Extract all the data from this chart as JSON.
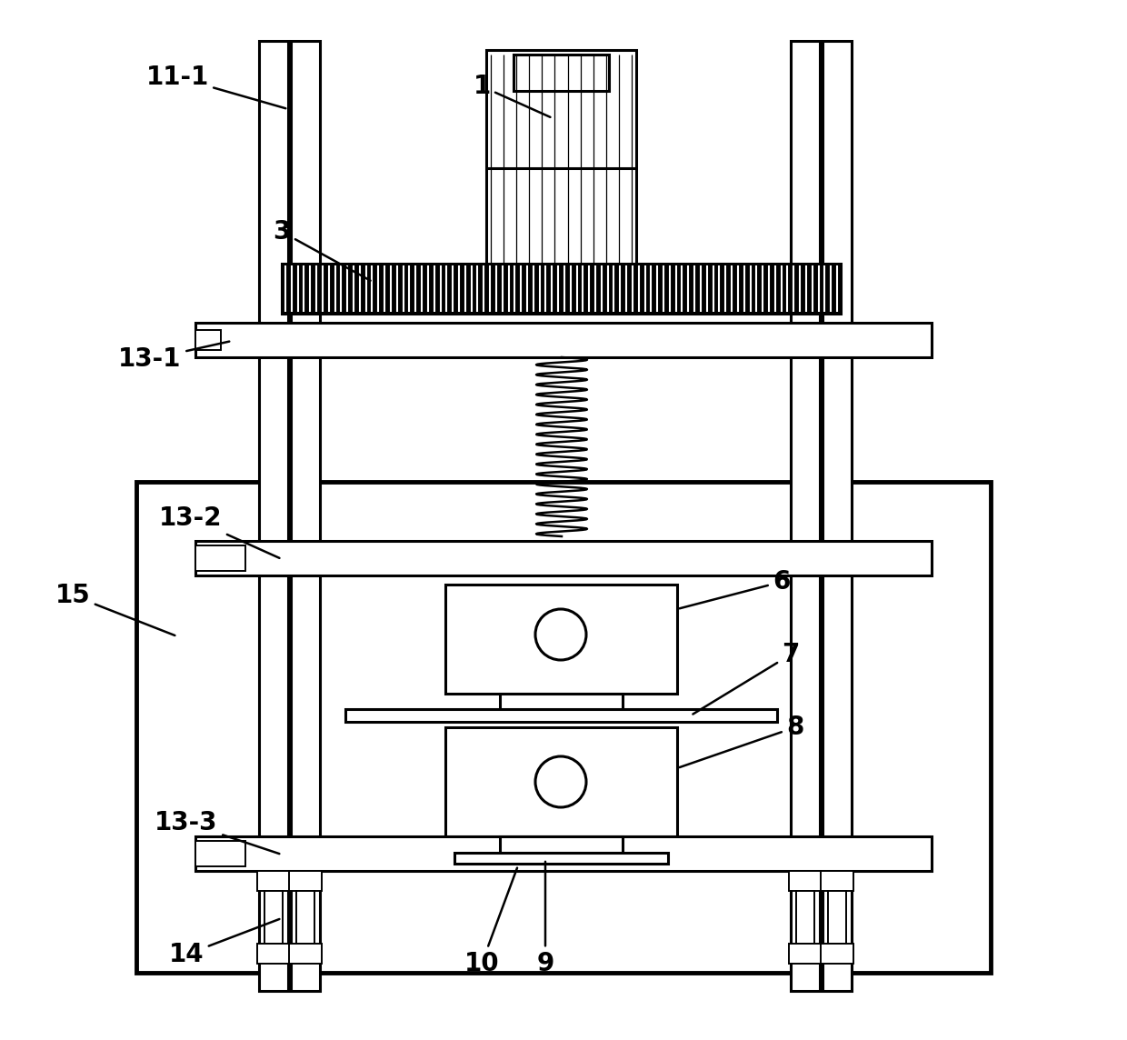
{
  "bg_color": "#ffffff",
  "line_color": "#000000",
  "fig_width": 12.4,
  "fig_height": 11.44,
  "dpi": 100
}
